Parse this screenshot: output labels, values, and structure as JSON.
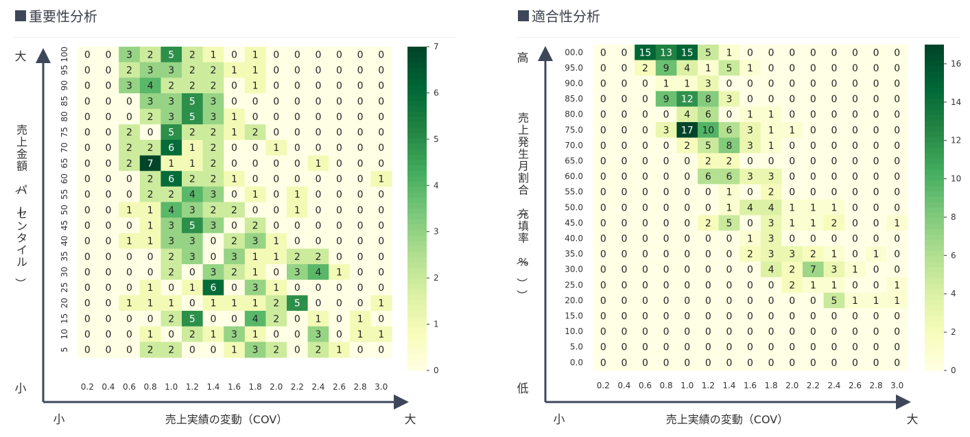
{
  "charts": [
    {
      "title": "重要性分析",
      "xlabel": "売上実績の変動（COV）",
      "ylabel": "売上金額（パーセンタイル）",
      "x_low": "小",
      "x_high": "大",
      "y_low": "小",
      "y_high": "大"
    },
    {
      "title": "適合性分析",
      "xlabel": "売上実績の変動（COV）",
      "ylabel": "売上発生月割合（充填率（%））",
      "x_low": "小",
      "x_high": "大",
      "y_low": "低",
      "y_high": "高"
    }
  ],
  "colors": {
    "scale_low": "#ffffe5",
    "scale_high": "#00441b",
    "axis_arrow": "#3d4759"
  },
  "chart_data": [
    {
      "type": "heatmap",
      "title": "重要性分析",
      "xlabel": "売上実績の変動（COV）",
      "ylabel": "売上金額（パーセンタイル）",
      "x_categories": [
        "0.2",
        "0.4",
        "0.6",
        "0.8",
        "1.0",
        "1.2",
        "1.4",
        "1.6",
        "1.8",
        "2.0",
        "2.2",
        "2.4",
        "2.6",
        "2.8",
        "3.0"
      ],
      "y_categories": [
        "100",
        "95",
        "90",
        "85",
        "80",
        "75",
        "70",
        "65",
        "60",
        "55",
        "50",
        "45",
        "40",
        "35",
        "30",
        "25",
        "20",
        "15",
        "10",
        "5"
      ],
      "values": [
        [
          0,
          0,
          3,
          2,
          5,
          2,
          1,
          0,
          1,
          0,
          0,
          0,
          0,
          0,
          0
        ],
        [
          0,
          0,
          2,
          3,
          3,
          2,
          2,
          1,
          1,
          0,
          0,
          0,
          0,
          0,
          0
        ],
        [
          0,
          0,
          3,
          4,
          2,
          2,
          2,
          0,
          1,
          0,
          0,
          0,
          0,
          0,
          0
        ],
        [
          0,
          0,
          0,
          3,
          3,
          5,
          3,
          0,
          0,
          0,
          0,
          0,
          0,
          0,
          0
        ],
        [
          0,
          0,
          0,
          2,
          3,
          5,
          3,
          1,
          0,
          0,
          0,
          0,
          0,
          0,
          0
        ],
        [
          0,
          0,
          2,
          0,
          5,
          2,
          2,
          1,
          2,
          0,
          0,
          0,
          0,
          0,
          0
        ],
        [
          0,
          0,
          2,
          2,
          6,
          1,
          2,
          0,
          0,
          1,
          0,
          0,
          0,
          0,
          0
        ],
        [
          0,
          0,
          2,
          7,
          1,
          1,
          2,
          0,
          0,
          0,
          0,
          1,
          0,
          0,
          0
        ],
        [
          0,
          0,
          0,
          2,
          6,
          2,
          2,
          1,
          0,
          0,
          0,
          0,
          0,
          0,
          1
        ],
        [
          0,
          0,
          0,
          2,
          2,
          4,
          3,
          0,
          1,
          0,
          1,
          0,
          0,
          0,
          0
        ],
        [
          0,
          0,
          1,
          1,
          4,
          3,
          2,
          2,
          0,
          0,
          1,
          0,
          0,
          0,
          0
        ],
        [
          0,
          0,
          0,
          1,
          3,
          5,
          3,
          0,
          2,
          0,
          0,
          0,
          0,
          0,
          0
        ],
        [
          0,
          0,
          1,
          1,
          3,
          3,
          0,
          2,
          3,
          1,
          0,
          0,
          0,
          0,
          0
        ],
        [
          0,
          0,
          0,
          0,
          2,
          3,
          0,
          3,
          1,
          1,
          2,
          2,
          0,
          0,
          0
        ],
        [
          0,
          0,
          0,
          0,
          2,
          0,
          3,
          2,
          1,
          0,
          3,
          4,
          1,
          0,
          0
        ],
        [
          0,
          0,
          0,
          1,
          0,
          1,
          6,
          0,
          3,
          1,
          0,
          0,
          0,
          0,
          0
        ],
        [
          0,
          0,
          1,
          1,
          1,
          0,
          1,
          1,
          1,
          2,
          5,
          0,
          0,
          0,
          1
        ],
        [
          0,
          0,
          0,
          0,
          2,
          5,
          0,
          0,
          4,
          2,
          0,
          1,
          0,
          1,
          0
        ],
        [
          0,
          0,
          0,
          1,
          0,
          2,
          1,
          3,
          1,
          0,
          0,
          3,
          0,
          1,
          1
        ],
        [
          0,
          0,
          0,
          2,
          2,
          0,
          0,
          1,
          3,
          2,
          0,
          2,
          1,
          0,
          0
        ]
      ],
      "colorbar": {
        "min": 0,
        "max": 7,
        "ticks": [
          0,
          1,
          2,
          3,
          4,
          5,
          6,
          7
        ]
      }
    },
    {
      "type": "heatmap",
      "title": "適合性分析",
      "xlabel": "売上実績の変動（COV）",
      "ylabel": "売上発生月割合（充填率（%））",
      "x_categories": [
        "0.2",
        "0.4",
        "0.6",
        "0.8",
        "1.0",
        "1.2",
        "1.4",
        "1.6",
        "1.8",
        "2.0",
        "2.2",
        "2.4",
        "2.6",
        "2.8",
        "3.0"
      ],
      "y_categories": [
        "00.0",
        "95.0",
        "90.0",
        "85.0",
        "80.0",
        "75.0",
        "70.0",
        "65.0",
        "60.0",
        "55.0",
        "50.0",
        "45.0",
        "40.0",
        "35.0",
        "30.0",
        "25.0",
        "20.0",
        "15.0",
        "10.0",
        "5.0",
        "0.0"
      ],
      "values": [
        [
          0,
          0,
          15,
          13,
          15,
          5,
          1,
          0,
          0,
          0,
          0,
          0,
          0,
          0,
          0
        ],
        [
          0,
          0,
          2,
          9,
          4,
          1,
          5,
          1,
          0,
          0,
          0,
          0,
          0,
          0,
          0
        ],
        [
          0,
          0,
          0,
          1,
          1,
          3,
          0,
          0,
          0,
          0,
          0,
          0,
          0,
          0,
          0
        ],
        [
          0,
          0,
          0,
          9,
          12,
          8,
          3,
          0,
          0,
          0,
          0,
          0,
          0,
          0,
          0
        ],
        [
          0,
          0,
          0,
          0,
          4,
          6,
          0,
          1,
          1,
          0,
          0,
          0,
          0,
          0,
          0
        ],
        [
          0,
          0,
          0,
          3,
          17,
          10,
          6,
          3,
          1,
          1,
          0,
          0,
          0,
          0,
          0
        ],
        [
          0,
          0,
          0,
          0,
          2,
          5,
          8,
          3,
          1,
          0,
          0,
          0,
          0,
          0,
          0
        ],
        [
          0,
          0,
          0,
          0,
          0,
          2,
          2,
          0,
          0,
          0,
          0,
          0,
          0,
          0,
          0
        ],
        [
          0,
          0,
          0,
          0,
          0,
          6,
          6,
          3,
          3,
          0,
          0,
          0,
          0,
          0,
          0
        ],
        [
          0,
          0,
          0,
          0,
          0,
          0,
          1,
          0,
          2,
          0,
          0,
          0,
          0,
          0,
          0
        ],
        [
          0,
          0,
          0,
          0,
          0,
          0,
          1,
          4,
          4,
          1,
          1,
          1,
          0,
          0,
          0
        ],
        [
          0,
          0,
          0,
          0,
          0,
          2,
          5,
          0,
          3,
          1,
          1,
          2,
          0,
          0,
          1
        ],
        [
          0,
          0,
          0,
          0,
          0,
          0,
          0,
          1,
          3,
          0,
          0,
          0,
          0,
          0,
          0
        ],
        [
          0,
          0,
          0,
          0,
          0,
          0,
          0,
          2,
          3,
          3,
          2,
          1,
          0,
          1,
          0
        ],
        [
          0,
          0,
          0,
          0,
          0,
          0,
          0,
          0,
          4,
          2,
          7,
          3,
          1,
          0,
          0
        ],
        [
          0,
          0,
          0,
          0,
          0,
          0,
          0,
          0,
          0,
          2,
          1,
          1,
          0,
          0,
          1
        ],
        [
          0,
          0,
          0,
          0,
          0,
          0,
          0,
          0,
          0,
          0,
          0,
          5,
          1,
          1,
          1
        ],
        [
          0,
          0,
          0,
          0,
          0,
          0,
          0,
          0,
          0,
          0,
          0,
          0,
          0,
          0,
          0
        ],
        [
          0,
          0,
          0,
          0,
          0,
          0,
          0,
          0,
          0,
          0,
          0,
          0,
          0,
          0,
          0
        ],
        [
          0,
          0,
          0,
          0,
          0,
          0,
          0,
          0,
          0,
          0,
          0,
          0,
          0,
          0,
          0
        ],
        [
          0,
          0,
          0,
          0,
          0,
          0,
          0,
          0,
          0,
          0,
          0,
          0,
          0,
          0,
          0
        ]
      ],
      "colorbar": {
        "min": 0,
        "max": 17,
        "ticks": [
          0,
          2,
          4,
          6,
          8,
          10,
          12,
          14,
          16
        ]
      }
    }
  ]
}
